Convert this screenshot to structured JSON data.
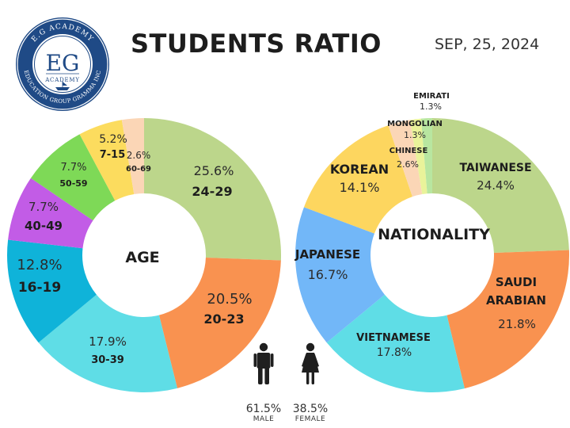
{
  "header": {
    "title": "STUDENTS RATIO",
    "date": "SEP, 25, 2024"
  },
  "logo": {
    "top_text": "E.G ACADEMY",
    "bottom_text": "EDUCATION GROUP GRAMMA INC",
    "monogram": "EG",
    "sub": "ACADEMY",
    "ring_color": "#1f4a86"
  },
  "chart_data": [
    {
      "type": "pie",
      "title": "AGE",
      "slices": [
        {
          "label": "24-29",
          "value": 25.6,
          "display": "25.6%",
          "color": "#bcd68b"
        },
        {
          "label": "20-23",
          "value": 20.5,
          "display": "20.5%",
          "color": "#f99250"
        },
        {
          "label": "30-39",
          "value": 17.9,
          "display": "17.9%",
          "color": "#5fdde6"
        },
        {
          "label": "16-19",
          "value": 12.8,
          "display": "12.8%",
          "color": "#0fb3d9"
        },
        {
          "label": "40-49",
          "value": 7.7,
          "display": "7.7%",
          "color": "#c25ce6"
        },
        {
          "label": "50-59",
          "value": 7.7,
          "display": "7.7%",
          "color": "#7ed957"
        },
        {
          "label": "7-15",
          "value": 5.2,
          "display": "5.2%",
          "color": "#fcdc5e"
        },
        {
          "label": "60-69",
          "value": 2.6,
          "display": "2.6%",
          "color": "#fbd6b6"
        }
      ]
    },
    {
      "type": "pie",
      "title": "NATIONALITY",
      "slices": [
        {
          "label": "TAIWANESE",
          "value": 24.4,
          "display": "24.4%",
          "color": "#bcd68b"
        },
        {
          "label": "SAUDI ARABIAN",
          "value": 21.8,
          "display": "21.8%",
          "color": "#f99250"
        },
        {
          "label": "VIETNAMESE",
          "value": 17.8,
          "display": "17.8%",
          "color": "#5fdde6"
        },
        {
          "label": "JAPANESE",
          "value": 16.7,
          "display": "16.7%",
          "color": "#72b7f8"
        },
        {
          "label": "KOREAN",
          "value": 14.1,
          "display": "14.1%",
          "color": "#fdd65f"
        },
        {
          "label": "CHINESE",
          "value": 2.6,
          "display": "2.6%",
          "color": "#fbd6b6"
        },
        {
          "label": "MONGOLIAN",
          "value": 1.3,
          "display": "1.3%",
          "color": "#e9f39a"
        },
        {
          "label": "EMIRATI",
          "value": 1.3,
          "display": "1.3%",
          "color": "#b8e6a0"
        }
      ]
    }
  ],
  "gender": {
    "male": {
      "label": "MALE",
      "display": "61.5%",
      "value": 61.5,
      "icon": "male-icon"
    },
    "female": {
      "label": "FEMALE",
      "display": "38.5%",
      "value": 38.5,
      "icon": "female-icon"
    }
  }
}
